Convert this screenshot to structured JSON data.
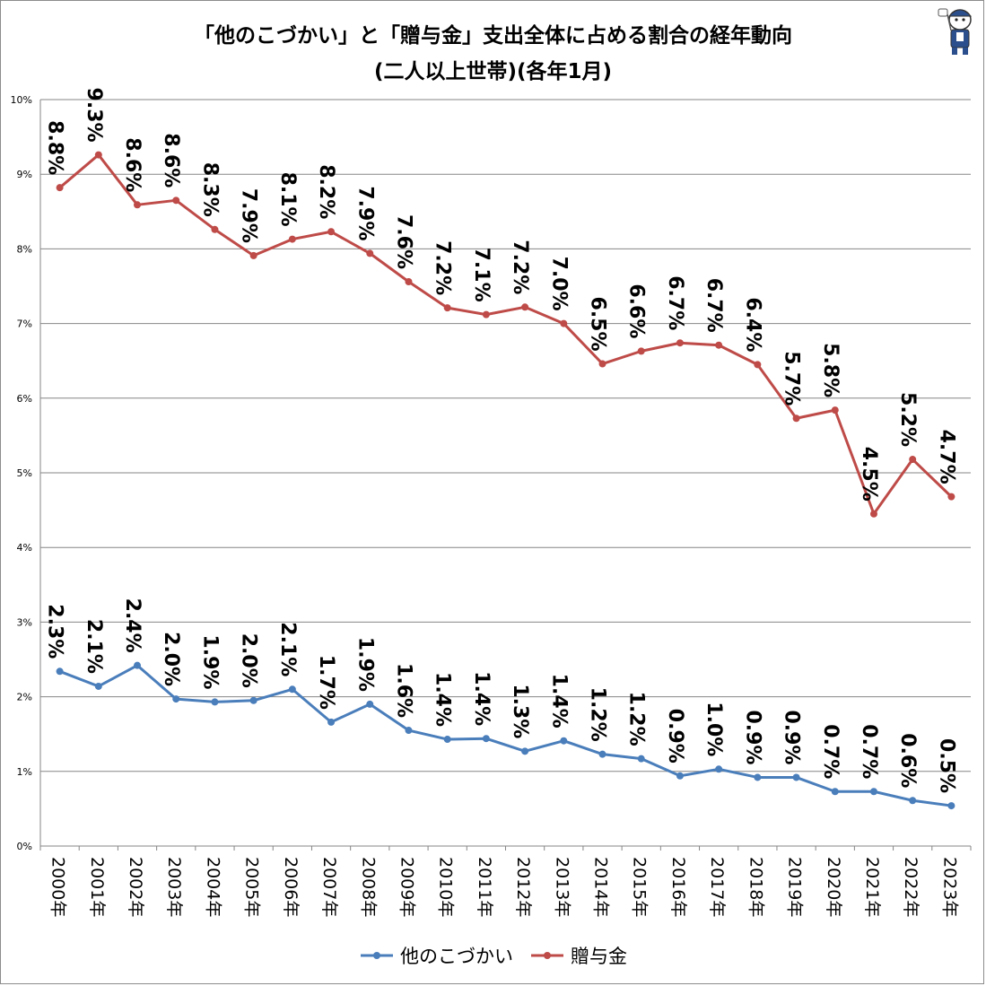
{
  "title_line1": "「他のこづかい」と「贈与金」支出全体に占める割合の経年動向",
  "title_line2": "(二人以上世帯)(各年1月)",
  "mascot_icon": "mascot-character-icon",
  "chart_data": {
    "type": "line",
    "x": [
      "2000年",
      "2001年",
      "2002年",
      "2003年",
      "2004年",
      "2005年",
      "2006年",
      "2007年",
      "2008年",
      "2009年",
      "2010年",
      "2011年",
      "2012年",
      "2013年",
      "2014年",
      "2015年",
      "2016年",
      "2017年",
      "2018年",
      "2019年",
      "2020年",
      "2021年",
      "2022年",
      "2023年"
    ],
    "ylim": [
      0,
      10
    ],
    "yticks": [
      "0%",
      "1%",
      "2%",
      "3%",
      "4%",
      "5%",
      "6%",
      "7%",
      "8%",
      "9%",
      "10%"
    ],
    "grid": true,
    "legend_position": "bottom",
    "series": [
      {
        "name": "他のこづかい",
        "color": "#4a7ebb",
        "values": [
          2.34,
          2.14,
          2.42,
          1.97,
          1.93,
          1.95,
          2.1,
          1.66,
          1.9,
          1.55,
          1.43,
          1.44,
          1.27,
          1.41,
          1.23,
          1.17,
          0.94,
          1.03,
          0.92,
          0.92,
          0.73,
          0.73,
          0.61,
          0.54
        ],
        "labels": [
          "2.3%",
          "2.1%",
          "2.4%",
          "2.0%",
          "1.9%",
          "2.0%",
          "2.1%",
          "1.7%",
          "1.9%",
          "1.6%",
          "1.4%",
          "1.4%",
          "1.3%",
          "1.4%",
          "1.2%",
          "1.2%",
          "0.9%",
          "1.0%",
          "0.9%",
          "0.9%",
          "0.7%",
          "0.7%",
          "0.6%",
          "0.5%"
        ]
      },
      {
        "name": "贈与金",
        "color": "#be4b48",
        "values": [
          8.82,
          9.26,
          8.59,
          8.65,
          8.26,
          7.91,
          8.13,
          8.23,
          7.94,
          7.56,
          7.21,
          7.12,
          7.22,
          7.0,
          6.46,
          6.63,
          6.74,
          6.71,
          6.45,
          5.73,
          5.84,
          4.45,
          5.18,
          4.68
        ],
        "labels": [
          "8.8%",
          "9.3%",
          "8.6%",
          "8.6%",
          "8.3%",
          "7.9%",
          "8.1%",
          "8.2%",
          "7.9%",
          "7.6%",
          "7.2%",
          "7.1%",
          "7.2%",
          "7.0%",
          "6.5%",
          "6.6%",
          "6.7%",
          "6.7%",
          "6.4%",
          "5.7%",
          "5.8%",
          "4.5%",
          "5.2%",
          "4.7%"
        ]
      }
    ]
  }
}
